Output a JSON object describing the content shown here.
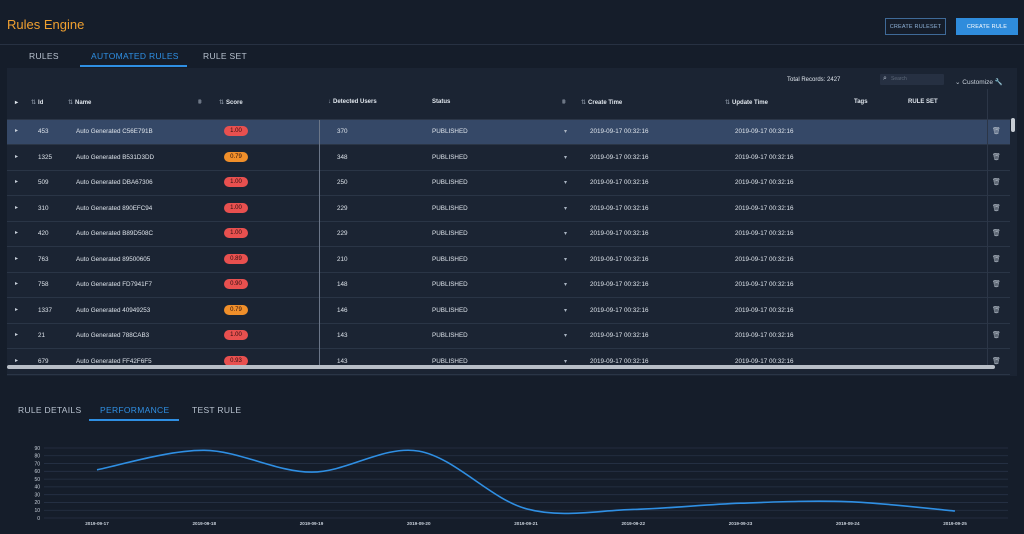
{
  "header": {
    "title": "Rules Engine",
    "create_ruleset": "CREATE RULESET",
    "create_rule": "CREATE RULE"
  },
  "tabs": [
    {
      "label": "RULES",
      "active": false
    },
    {
      "label": "AUTOMATED RULES",
      "active": true
    },
    {
      "label": "RULE SET",
      "active": false
    }
  ],
  "grid": {
    "total_records": "Total Records: 2427",
    "search_placeholder": "Search",
    "customize": "Customize",
    "columns": [
      "Id",
      "Name",
      "Score",
      "Detected Users",
      "Status",
      "Create Time",
      "Update Time",
      "Tags",
      "RULE SET"
    ],
    "rows": [
      {
        "id": "453",
        "name": "Auto Generated C56E791B",
        "score": "1.00",
        "score_color": "#e8504f",
        "users": "370",
        "status": "PUBLISHED",
        "create": "2019-09-17 00:32:16",
        "update": "2019-09-17 00:32:16",
        "selected": true
      },
      {
        "id": "1325",
        "name": "Auto Generated B531D3DD",
        "score": "0.79",
        "score_color": "#f08f2a",
        "users": "348",
        "status": "PUBLISHED",
        "create": "2019-09-17 00:32:16",
        "update": "2019-09-17 00:32:16",
        "selected": false
      },
      {
        "id": "509",
        "name": "Auto Generated DBA67306",
        "score": "1.00",
        "score_color": "#e8504f",
        "users": "250",
        "status": "PUBLISHED",
        "create": "2019-09-17 00:32:16",
        "update": "2019-09-17 00:32:16",
        "selected": false
      },
      {
        "id": "310",
        "name": "Auto Generated 890EFC94",
        "score": "1.00",
        "score_color": "#e8504f",
        "users": "229",
        "status": "PUBLISHED",
        "create": "2019-09-17 00:32:16",
        "update": "2019-09-17 00:32:16",
        "selected": false
      },
      {
        "id": "420",
        "name": "Auto Generated B89D508C",
        "score": "1.00",
        "score_color": "#e8504f",
        "users": "229",
        "status": "PUBLISHED",
        "create": "2019-09-17 00:32:16",
        "update": "2019-09-17 00:32:16",
        "selected": false
      },
      {
        "id": "763",
        "name": "Auto Generated 89500605",
        "score": "0.89",
        "score_color": "#e8504f",
        "users": "210",
        "status": "PUBLISHED",
        "create": "2019-09-17 00:32:16",
        "update": "2019-09-17 00:32:16",
        "selected": false
      },
      {
        "id": "758",
        "name": "Auto Generated FD7941F7",
        "score": "0.90",
        "score_color": "#e8504f",
        "users": "148",
        "status": "PUBLISHED",
        "create": "2019-09-17 00:32:16",
        "update": "2019-09-17 00:32:16",
        "selected": false
      },
      {
        "id": "1337",
        "name": "Auto Generated 40949253",
        "score": "0.79",
        "score_color": "#f08f2a",
        "users": "146",
        "status": "PUBLISHED",
        "create": "2019-09-17 00:32:16",
        "update": "2019-09-17 00:32:16",
        "selected": false
      },
      {
        "id": "21",
        "name": "Auto Generated 788CAB3",
        "score": "1.00",
        "score_color": "#e8504f",
        "users": "143",
        "status": "PUBLISHED",
        "create": "2019-09-17 00:32:16",
        "update": "2019-09-17 00:32:16",
        "selected": false
      },
      {
        "id": "679",
        "name": "Auto Generated FF42F6F5",
        "score": "0.93",
        "score_color": "#e8504f",
        "users": "143",
        "status": "PUBLISHED",
        "create": "2019-09-17 00:32:16",
        "update": "2019-09-17 00:32:16",
        "selected": false
      }
    ]
  },
  "bottom_tabs": [
    {
      "label": "RULE DETAILS",
      "active": false
    },
    {
      "label": "PERFORMANCE",
      "active": true
    },
    {
      "label": "TEST RULE",
      "active": false
    }
  ],
  "chart_data": {
    "type": "line",
    "x": [
      "2019-09-17",
      "2019-09-18",
      "2019-09-19",
      "2019-09-20",
      "2019-09-21",
      "2019-09-22",
      "2019-09-23",
      "2019-09-24",
      "2019-09-25"
    ],
    "series": [
      {
        "values": [
          62,
          87,
          59,
          86,
          12,
          11,
          19,
          21,
          9
        ]
      }
    ],
    "ylim": [
      0,
      90
    ],
    "yticks": [
      0,
      10,
      20,
      30,
      40,
      50,
      60,
      70,
      80,
      90
    ],
    "grid": true,
    "color": "#2f8fe3"
  }
}
